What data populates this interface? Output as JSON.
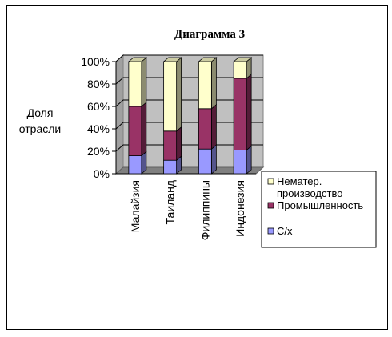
{
  "chart_data": {
    "type": "bar",
    "stacked": true,
    "percent": true,
    "title": "Диаграмма 3",
    "ylabel_lines": [
      "Доля",
      "отрасли"
    ],
    "categories": [
      "Малайзия",
      "Таиланд",
      "Филиппины",
      "Индонезия"
    ],
    "yticks": [
      "0%",
      "20%",
      "40%",
      "60%",
      "80%",
      "100%"
    ],
    "ylim": [
      0,
      100
    ],
    "grid": true,
    "legend_position": "right",
    "series": [
      {
        "name": "С/х",
        "color": "#9999ff",
        "values": [
          16,
          12,
          22,
          21
        ]
      },
      {
        "name": "Промышленность",
        "color": "#993366",
        "values": [
          44,
          26,
          36,
          64
        ]
      },
      {
        "name": "Нематер. производство",
        "legend_lines": [
          "Нематер.",
          "производство"
        ],
        "color": "#ffffcc",
        "values": [
          40,
          62,
          42,
          15
        ]
      }
    ]
  }
}
